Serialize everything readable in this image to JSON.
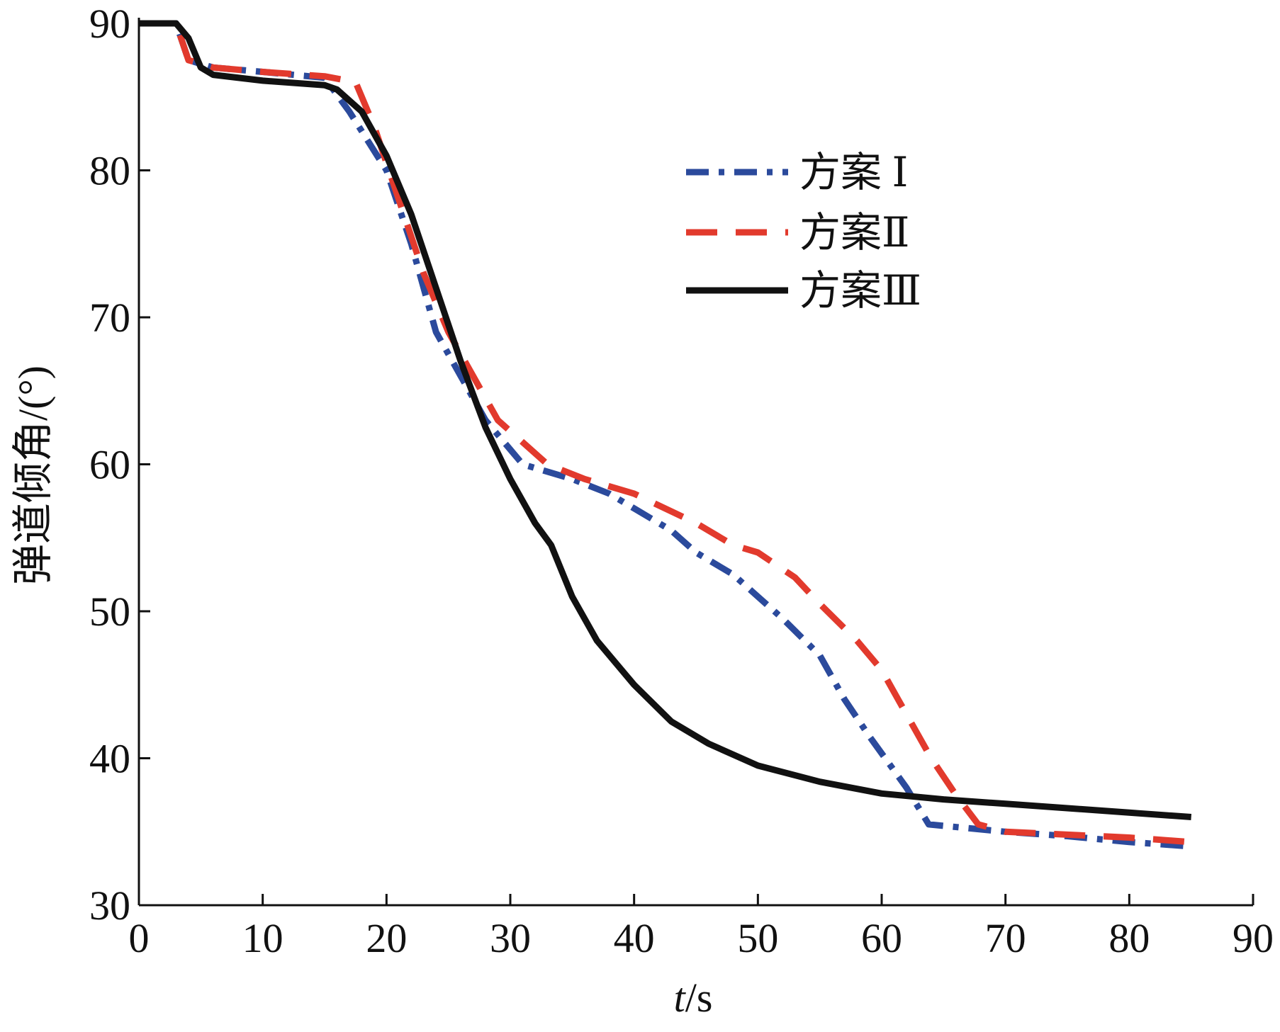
{
  "chart_data": {
    "type": "line",
    "title": "",
    "xlabel_italic": "t",
    "xlabel_unit": "/s",
    "ylabel": "弹道倾角/(°)",
    "xlim": [
      0,
      90
    ],
    "ylim": [
      30,
      90
    ],
    "x_ticks": [
      0,
      10,
      20,
      30,
      40,
      50,
      60,
      70,
      80,
      90
    ],
    "x_tick_labels": [
      "0",
      "10",
      "20",
      "30",
      "40",
      "50",
      "60",
      "70",
      "80",
      "90"
    ],
    "y_ticks": [
      30,
      40,
      50,
      60,
      70,
      80,
      90
    ],
    "y_tick_labels": [
      "30",
      "40",
      "50",
      "60",
      "70",
      "80",
      "90"
    ],
    "grid": false,
    "legend_position": "top-right",
    "series": [
      {
        "name": "方案 Ⅰ",
        "color": "#2b4a9c",
        "style": "dashdot",
        "points": [
          [
            0,
            90
          ],
          [
            3,
            90
          ],
          [
            4,
            87.5
          ],
          [
            6,
            87
          ],
          [
            10,
            86.7
          ],
          [
            15,
            86.3
          ],
          [
            17,
            84
          ],
          [
            20,
            80
          ],
          [
            22,
            75
          ],
          [
            24,
            69
          ],
          [
            26,
            66
          ],
          [
            28,
            63
          ],
          [
            30,
            61
          ],
          [
            31,
            60
          ],
          [
            35,
            59
          ],
          [
            38,
            58
          ],
          [
            40,
            57
          ],
          [
            43,
            55.5
          ],
          [
            45,
            54
          ],
          [
            48,
            52.5
          ],
          [
            50,
            51
          ],
          [
            52,
            49.5
          ],
          [
            55,
            47
          ],
          [
            57,
            44
          ],
          [
            59,
            41.5
          ],
          [
            62,
            38
          ],
          [
            63.8,
            35.5
          ],
          [
            70,
            35
          ],
          [
            75,
            34.7
          ],
          [
            80,
            34.3
          ],
          [
            85,
            34
          ]
        ]
      },
      {
        "name": "方案Ⅱ",
        "color": "#e23a2d",
        "style": "dashed",
        "points": [
          [
            0,
            90
          ],
          [
            3,
            90
          ],
          [
            4,
            87.5
          ],
          [
            6,
            87
          ],
          [
            10,
            86.7
          ],
          [
            15,
            86.4
          ],
          [
            17.5,
            86
          ],
          [
            19,
            83
          ],
          [
            21,
            78
          ],
          [
            23,
            73
          ],
          [
            25,
            69
          ],
          [
            27,
            66
          ],
          [
            29,
            63
          ],
          [
            31,
            61.5
          ],
          [
            33,
            60
          ],
          [
            36,
            59
          ],
          [
            40,
            58
          ],
          [
            43,
            56.8
          ],
          [
            45,
            56
          ],
          [
            48,
            54.5
          ],
          [
            50,
            54
          ],
          [
            53,
            52.3
          ],
          [
            55,
            50.5
          ],
          [
            58,
            48
          ],
          [
            60,
            46
          ],
          [
            62,
            43
          ],
          [
            64,
            40
          ],
          [
            66,
            37.5
          ],
          [
            67.8,
            35.5
          ],
          [
            70,
            35
          ],
          [
            75,
            34.8
          ],
          [
            80,
            34.6
          ],
          [
            85,
            34.3
          ]
        ]
      },
      {
        "name": "方案Ⅲ",
        "color": "#111111",
        "style": "solid",
        "points": [
          [
            0,
            90
          ],
          [
            3,
            90
          ],
          [
            4,
            89
          ],
          [
            5,
            87
          ],
          [
            6,
            86.5
          ],
          [
            10,
            86.1
          ],
          [
            15,
            85.8
          ],
          [
            16,
            85.5
          ],
          [
            18,
            84
          ],
          [
            20,
            81
          ],
          [
            22,
            77
          ],
          [
            24,
            72
          ],
          [
            26,
            67
          ],
          [
            28,
            62.5
          ],
          [
            30,
            59
          ],
          [
            32,
            56
          ],
          [
            33.3,
            54.5
          ],
          [
            35,
            51
          ],
          [
            37,
            48
          ],
          [
            40,
            45
          ],
          [
            43,
            42.5
          ],
          [
            46,
            41
          ],
          [
            50,
            39.5
          ],
          [
            55,
            38.4
          ],
          [
            60,
            37.6
          ],
          [
            65,
            37.2
          ],
          [
            70,
            36.9
          ],
          [
            75,
            36.6
          ],
          [
            80,
            36.3
          ],
          [
            85,
            36
          ]
        ]
      }
    ]
  }
}
